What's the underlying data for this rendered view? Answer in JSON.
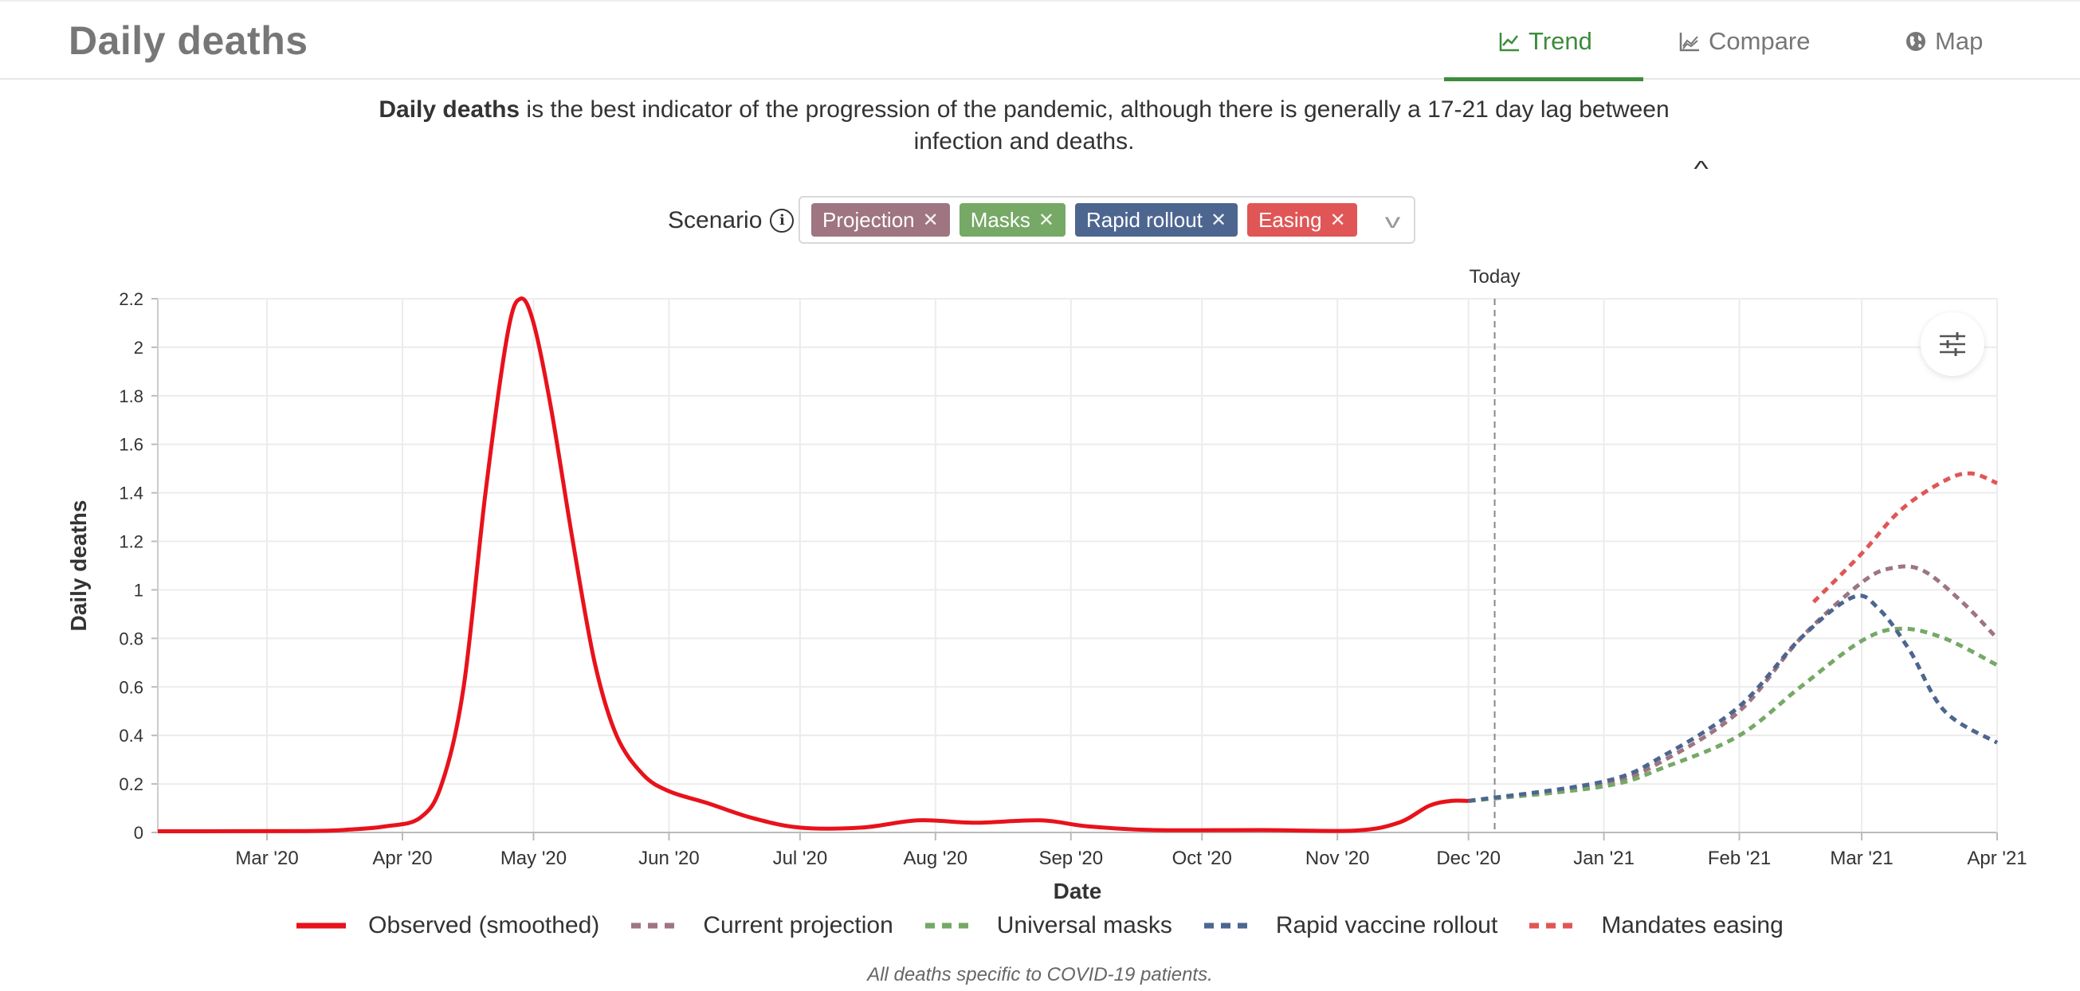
{
  "header": {
    "title": "Daily deaths",
    "tabs": [
      {
        "label": "Trend",
        "icon": "line-chart-icon",
        "active": true
      },
      {
        "label": "Compare",
        "icon": "area-chart-icon",
        "active": false
      },
      {
        "label": "Map",
        "icon": "globe-icon",
        "active": false
      }
    ]
  },
  "description": {
    "bold": "Daily deaths",
    "rest": " is the best indicator of the progression of the pandemic, although there is generally a 17-21 day lag between infection and deaths."
  },
  "scenario": {
    "label": "Scenario",
    "chips": [
      {
        "label": "Projection",
        "color": "#9e7580"
      },
      {
        "label": "Masks",
        "color": "#76a866"
      },
      {
        "label": "Rapid rollout",
        "color": "#4d6690"
      },
      {
        "label": "Easing",
        "color": "#e05656"
      }
    ]
  },
  "chart_data": {
    "type": "line",
    "xlabel": "Date",
    "ylabel": "Daily deaths",
    "ylim": [
      0,
      2.2
    ],
    "xlim": [
      "2020-02-05",
      "2021-04-01"
    ],
    "yticks": [
      0,
      0.2,
      0.4,
      0.6,
      0.8,
      1,
      1.2,
      1.4,
      1.6,
      1.8,
      2,
      2.2
    ],
    "yticklabels": [
      "0",
      "0.2",
      "0.4",
      "0.6",
      "0.8",
      "1",
      "1.2",
      "1.4",
      "1.6",
      "1.8",
      "2",
      "2.2"
    ],
    "xticks": [
      {
        "date": "2020-03-01",
        "label": "Mar '20"
      },
      {
        "date": "2020-04-01",
        "label": "Apr '20"
      },
      {
        "date": "2020-05-01",
        "label": "May '20"
      },
      {
        "date": "2020-06-01",
        "label": "Jun '20"
      },
      {
        "date": "2020-07-01",
        "label": "Jul '20"
      },
      {
        "date": "2020-08-01",
        "label": "Aug '20"
      },
      {
        "date": "2020-09-01",
        "label": "Sep '20"
      },
      {
        "date": "2020-10-01",
        "label": "Oct '20"
      },
      {
        "date": "2020-11-01",
        "label": "Nov '20"
      },
      {
        "date": "2020-12-01",
        "label": "Dec '20"
      },
      {
        "date": "2021-01-01",
        "label": "Jan '21"
      },
      {
        "date": "2021-02-01",
        "label": "Feb '21"
      },
      {
        "date": "2021-03-01",
        "label": "Mar '21"
      },
      {
        "date": "2021-04-01",
        "label": "Apr '21"
      }
    ],
    "grid": true,
    "legend_position": "bottom",
    "annotation": {
      "label": "Today",
      "date": "2020-12-07"
    },
    "series": [
      {
        "name": "Observed (smoothed)",
        "color": "#e8121b",
        "dash": false,
        "points": [
          [
            "2020-02-05",
            0.005
          ],
          [
            "2020-03-10",
            0.006
          ],
          [
            "2020-03-20",
            0.012
          ],
          [
            "2020-03-28",
            0.025
          ],
          [
            "2020-04-05",
            0.06
          ],
          [
            "2020-04-10",
            0.2
          ],
          [
            "2020-04-15",
            0.6
          ],
          [
            "2020-04-20",
            1.4
          ],
          [
            "2020-04-25",
            2.05
          ],
          [
            "2020-04-28",
            2.2
          ],
          [
            "2020-05-01",
            2.1
          ],
          [
            "2020-05-05",
            1.75
          ],
          [
            "2020-05-10",
            1.2
          ],
          [
            "2020-05-15",
            0.7
          ],
          [
            "2020-05-20",
            0.4
          ],
          [
            "2020-05-26",
            0.24
          ],
          [
            "2020-06-01",
            0.17
          ],
          [
            "2020-06-10",
            0.12
          ],
          [
            "2020-06-20",
            0.06
          ],
          [
            "2020-07-01",
            0.02
          ],
          [
            "2020-07-15",
            0.02
          ],
          [
            "2020-07-28",
            0.05
          ],
          [
            "2020-08-10",
            0.04
          ],
          [
            "2020-08-25",
            0.05
          ],
          [
            "2020-09-05",
            0.025
          ],
          [
            "2020-09-20",
            0.01
          ],
          [
            "2020-10-15",
            0.01
          ],
          [
            "2020-11-05",
            0.008
          ],
          [
            "2020-11-15",
            0.04
          ],
          [
            "2020-11-22",
            0.11
          ],
          [
            "2020-11-27",
            0.13
          ],
          [
            "2020-12-01",
            0.13
          ]
        ]
      },
      {
        "name": "Current projection",
        "color": "#9e7580",
        "dash": true,
        "points": [
          [
            "2020-12-01",
            0.13
          ],
          [
            "2021-01-01",
            0.2
          ],
          [
            "2021-01-15",
            0.3
          ],
          [
            "2021-02-01",
            0.5
          ],
          [
            "2021-02-15",
            0.8
          ],
          [
            "2021-03-01",
            1.03
          ],
          [
            "2021-03-08",
            1.09
          ],
          [
            "2021-03-15",
            1.08
          ],
          [
            "2021-03-24",
            0.95
          ],
          [
            "2021-04-01",
            0.8
          ]
        ]
      },
      {
        "name": "Universal masks",
        "color": "#76a866",
        "dash": true,
        "points": [
          [
            "2020-12-01",
            0.13
          ],
          [
            "2021-01-01",
            0.19
          ],
          [
            "2021-01-15",
            0.27
          ],
          [
            "2021-02-01",
            0.4
          ],
          [
            "2021-02-15",
            0.6
          ],
          [
            "2021-03-01",
            0.79
          ],
          [
            "2021-03-10",
            0.84
          ],
          [
            "2021-03-20",
            0.8
          ],
          [
            "2021-04-01",
            0.69
          ]
        ]
      },
      {
        "name": "Rapid vaccine rollout",
        "color": "#4d6690",
        "dash": true,
        "points": [
          [
            "2020-12-01",
            0.13
          ],
          [
            "2021-01-01",
            0.21
          ],
          [
            "2021-01-15",
            0.32
          ],
          [
            "2021-02-01",
            0.52
          ],
          [
            "2021-02-15",
            0.8
          ],
          [
            "2021-02-27",
            0.97
          ],
          [
            "2021-03-05",
            0.92
          ],
          [
            "2021-03-12",
            0.75
          ],
          [
            "2021-03-20",
            0.5
          ],
          [
            "2021-04-01",
            0.37
          ]
        ]
      },
      {
        "name": "Mandates easing",
        "color": "#e05656",
        "dash": true,
        "points": [
          [
            "2021-02-18",
            0.95
          ],
          [
            "2021-03-01",
            1.15
          ],
          [
            "2021-03-10",
            1.33
          ],
          [
            "2021-03-20",
            1.45
          ],
          [
            "2021-03-26",
            1.48
          ],
          [
            "2021-04-01",
            1.44
          ]
        ]
      }
    ]
  },
  "footnote": "All deaths specific to COVID-19 patients."
}
